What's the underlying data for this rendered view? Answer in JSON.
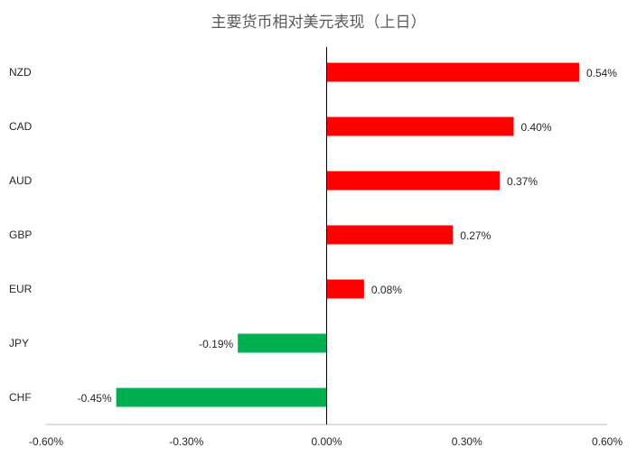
{
  "chart_data": {
    "type": "bar",
    "orientation": "horizontal",
    "title": "主要货币相对美元表现（上日）",
    "xlabel": "",
    "ylabel": "",
    "categories": [
      "NZD",
      "CAD",
      "AUD",
      "GBP",
      "EUR",
      "JPY",
      "CHF"
    ],
    "values": [
      0.54,
      0.4,
      0.37,
      0.27,
      0.08,
      -0.19,
      -0.45
    ],
    "data_labels": [
      "0.54%",
      "0.40%",
      "0.37%",
      "0.27%",
      "0.08%",
      "-0.19%",
      "-0.45%"
    ],
    "xlim": [
      -0.6,
      0.6
    ],
    "x_ticks": [
      -0.6,
      -0.3,
      0.0,
      0.3,
      0.6
    ],
    "x_tick_labels": [
      "-0.60%",
      "-0.30%",
      "0.00%",
      "0.30%",
      "0.60%"
    ],
    "grid": false,
    "legend": "none",
    "colors": {
      "positive": "#ff0000",
      "negative": "#00b050",
      "axis": "#000000"
    }
  }
}
